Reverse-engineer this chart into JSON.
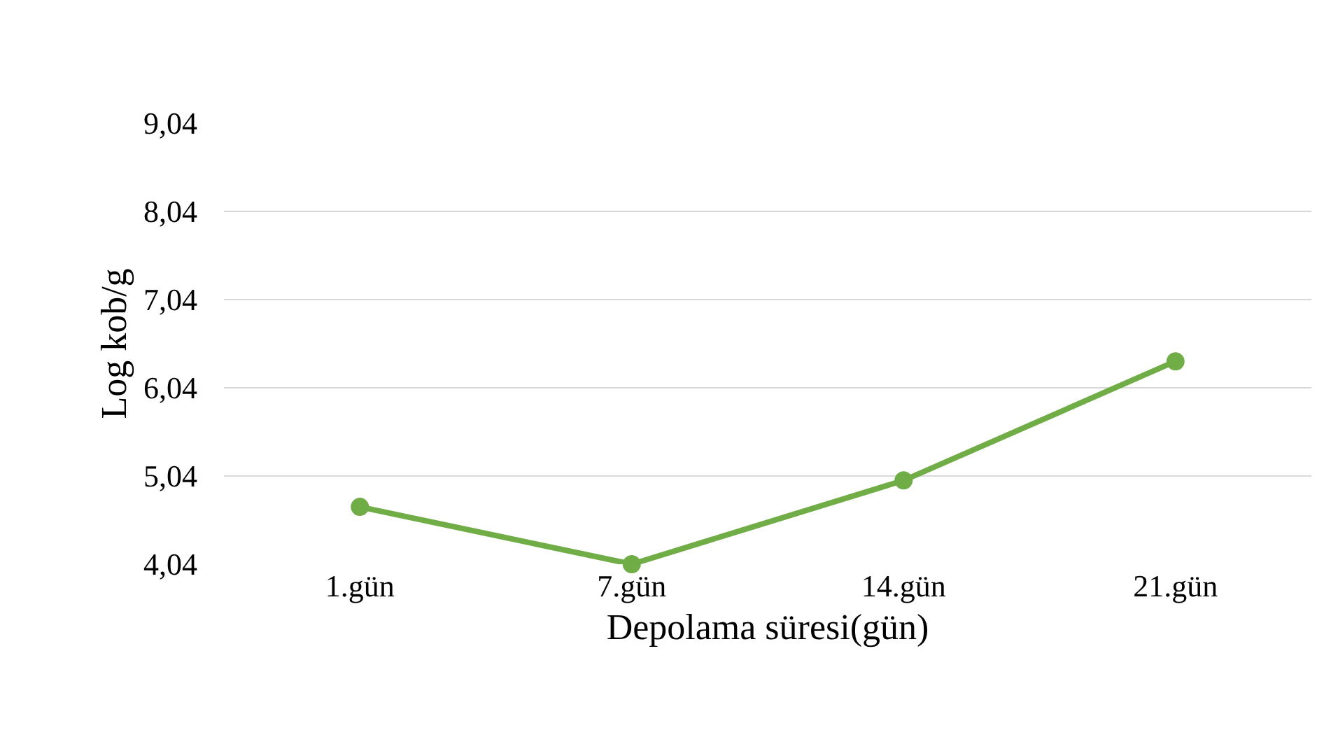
{
  "chart_data": {
    "type": "line",
    "xlabel": "Depolama süresi(gün)",
    "ylabel": "Log kob/g",
    "categories": [
      "1.gün",
      "7.gün",
      "14.gün",
      "21.gün"
    ],
    "series": [
      {
        "color": "#70ad47",
        "values": [
          4.69,
          4.04,
          4.99,
          6.34
        ]
      }
    ],
    "ylim": [
      4.04,
      9.04
    ],
    "yticks": [
      {
        "value": 4.04,
        "label": "4,04"
      },
      {
        "value": 5.04,
        "label": "5,04"
      },
      {
        "value": 6.04,
        "label": "6,04"
      },
      {
        "value": 7.04,
        "label": "7,04"
      },
      {
        "value": 8.04,
        "label": "8,04"
      },
      {
        "value": 9.04,
        "label": "9,04"
      }
    ],
    "grid": "y",
    "marker": "circle",
    "line_style": "solid"
  }
}
